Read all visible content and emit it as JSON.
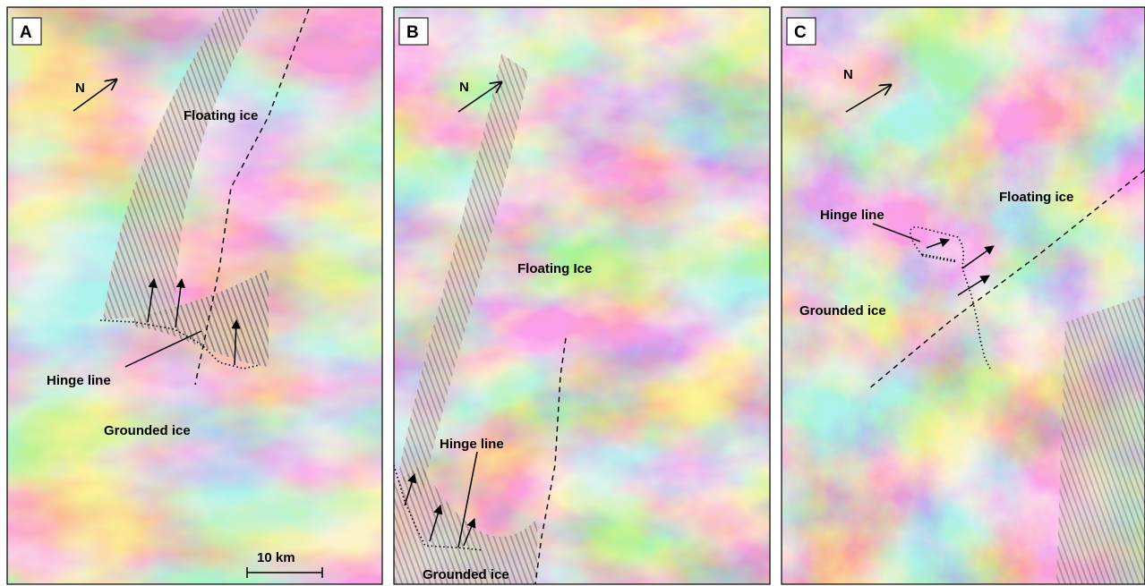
{
  "panels": [
    {
      "letter": "A",
      "north": "N",
      "floating": "Floating ice",
      "hinge": "Hinge line",
      "grounded": "Grounded ice",
      "scale_bar": "10 km"
    },
    {
      "letter": "B",
      "north": "N",
      "floating": "Floating Ice",
      "hinge": "Hinge line",
      "grounded": "Grounded ice"
    },
    {
      "letter": "C",
      "north": "N",
      "floating": "Floating ice",
      "hinge": "Hinge line",
      "grounded": "Grounded ice"
    }
  ]
}
